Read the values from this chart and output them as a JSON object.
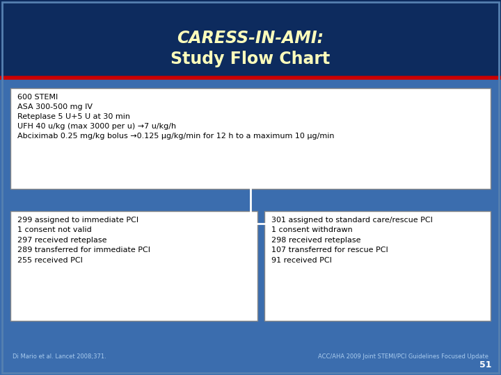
{
  "title_line1": "CARESS-IN-AMI:",
  "title_line2": "Study Flow Chart",
  "title_color": "#FFFFBB",
  "bg_color": "#0D2B5E",
  "red_line_color": "#CC0000",
  "slide_bg": "#3B6DAE",
  "top_box_text": "600 STEMI\nASA 300-500 mg IV\nReteplase 5 U+5 U at 30 min\nUFH 40 u/kg (max 3000 per u) →7 u/kg/h\nAbciximab 0.25 mg/kg bolus →0.125 μg/kg/min for 12 h to a maximum 10 μg/min",
  "left_box_text": "299 assigned to immediate PCI\n1 consent not valid\n297 received reteplase\n289 transferred for immediate PCI\n255 received PCI",
  "right_box_text": "301 assigned to standard care/rescue PCI\n1 consent withdrawn\n298 received reteplase\n107 transferred for rescue PCI\n91 received PCI",
  "box_bg": "#FFFFFF",
  "box_text_color": "#000000",
  "footnote_left": "Di Mario et al. Lancet 2008;371.",
  "footnote_right": "ACC/AHA 2009 Joint STEMI/PCI Guidelines Focused Update",
  "footnote_color": "#AACCEE",
  "slide_number": "51",
  "slide_number_color": "#FFFFFF",
  "arrow_color": "#FFFFFF",
  "connector_color": "#CCCCCC"
}
